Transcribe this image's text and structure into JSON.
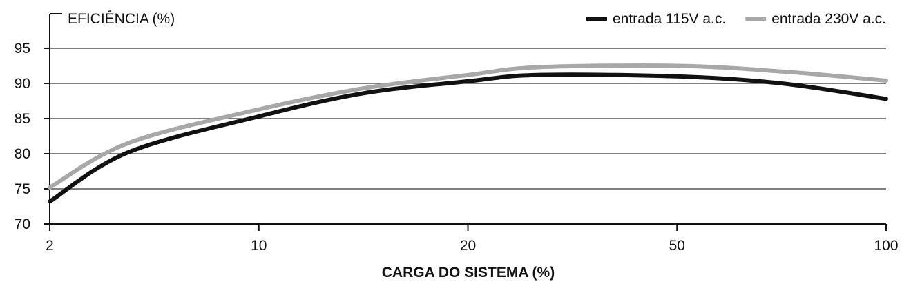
{
  "chart_data": {
    "type": "line",
    "title": "",
    "ylabel": "EFICIÊNCIA (%)",
    "xlabel": "CARGA DO SISTEMA (%)",
    "x_scale": "categorical-equal-spacing",
    "x_ticks": [
      2,
      10,
      20,
      50,
      100
    ],
    "y_ticks": [
      70,
      75,
      80,
      85,
      90,
      95
    ],
    "ylim": [
      70,
      100
    ],
    "grid": "horizontal",
    "legend_position": "top-right",
    "series": [
      {
        "name": "entrada 115V a.c.",
        "color": "#111111",
        "points": [
          {
            "x": 2,
            "y": 73.2
          },
          {
            "x": 5,
            "y": 80.2
          },
          {
            "x": 10,
            "y": 85.3
          },
          {
            "x": 15,
            "y": 88.6
          },
          {
            "x": 20,
            "y": 90.3
          },
          {
            "x": 30,
            "y": 91.2
          },
          {
            "x": 50,
            "y": 91.0
          },
          {
            "x": 75,
            "y": 90.0
          },
          {
            "x": 100,
            "y": 87.8
          }
        ]
      },
      {
        "name": "entrada 230V a.c.",
        "color": "#a8a8a8",
        "points": [
          {
            "x": 2,
            "y": 75.2
          },
          {
            "x": 5,
            "y": 81.5
          },
          {
            "x": 10,
            "y": 86.3
          },
          {
            "x": 15,
            "y": 89.3
          },
          {
            "x": 20,
            "y": 91.2
          },
          {
            "x": 30,
            "y": 92.3
          },
          {
            "x": 50,
            "y": 92.5
          },
          {
            "x": 75,
            "y": 91.7
          },
          {
            "x": 100,
            "y": 90.4
          }
        ]
      }
    ]
  }
}
